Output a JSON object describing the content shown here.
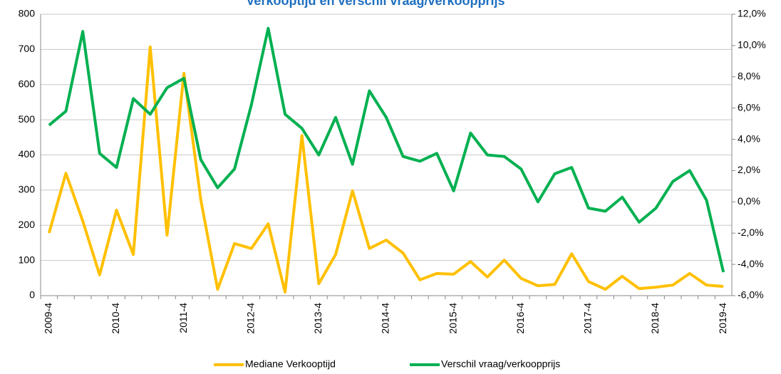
{
  "chart_data": {
    "type": "line",
    "title": "Verkooptijd en verschil vraag/verkoopprijs",
    "categories": [
      "2009-4",
      null,
      null,
      null,
      "2010-4",
      null,
      null,
      null,
      "2011-4",
      null,
      null,
      null,
      "2012-4",
      null,
      null,
      null,
      "2013-4",
      null,
      null,
      null,
      "2014-4",
      null,
      null,
      null,
      "2015-4",
      null,
      null,
      null,
      "2016-4",
      null,
      null,
      null,
      "2017-4",
      null,
      null,
      null,
      "2018-4",
      null,
      null,
      null,
      "2019-4"
    ],
    "series": [
      {
        "name": "Mediane Verkooptijd",
        "color": "#ffc000",
        "values": [
          178,
          348,
          212,
          59,
          243,
          117,
          707,
          172,
          632,
          273,
          18,
          148,
          134,
          204,
          10,
          455,
          34,
          117,
          298,
          134,
          158,
          121,
          45,
          63,
          61,
          97,
          53,
          101,
          49,
          28,
          32,
          119,
          40,
          18,
          55,
          20,
          24,
          30,
          63,
          30,
          26
        ]
      },
      {
        "name": "Verschil vraag/verkoopprijs",
        "color": "#00b050",
        "axis": "y2",
        "values": [
          4.9,
          5.8,
          10.9,
          3.1,
          2.2,
          6.6,
          5.6,
          7.3,
          7.9,
          2.7,
          0.9,
          2.1,
          6.2,
          11.1,
          5.6,
          4.7,
          3.0,
          5.4,
          2.4,
          7.1,
          5.4,
          2.9,
          2.6,
          3.1,
          0.7,
          4.4,
          3.0,
          2.9,
          2.1,
          0.0,
          1.8,
          2.2,
          -0.4,
          -0.6,
          0.3,
          -1.3,
          -0.4,
          1.3,
          2.0,
          0.1,
          -4.5
        ]
      }
    ],
    "ylim": [
      0,
      800
    ],
    "yticks": [
      0,
      100,
      200,
      300,
      400,
      500,
      600,
      700,
      800
    ],
    "y2lim": [
      -6,
      12
    ],
    "y2ticks": [
      {
        "value": -6,
        "label": "-6,0%"
      },
      {
        "value": -4,
        "label": "-4,0%"
      },
      {
        "value": -2,
        "label": "-2,0%"
      },
      {
        "value": 0,
        "label": "0,0%"
      },
      {
        "value": 2,
        "label": "2,0%"
      },
      {
        "value": 4,
        "label": "4,0%"
      },
      {
        "value": 6,
        "label": "6,0%"
      },
      {
        "value": 8,
        "label": "8,0%"
      },
      {
        "value": 10,
        "label": "10,0%"
      },
      {
        "value": 12,
        "label": "12,0%"
      }
    ],
    "grid": true,
    "legend": "bottom"
  }
}
